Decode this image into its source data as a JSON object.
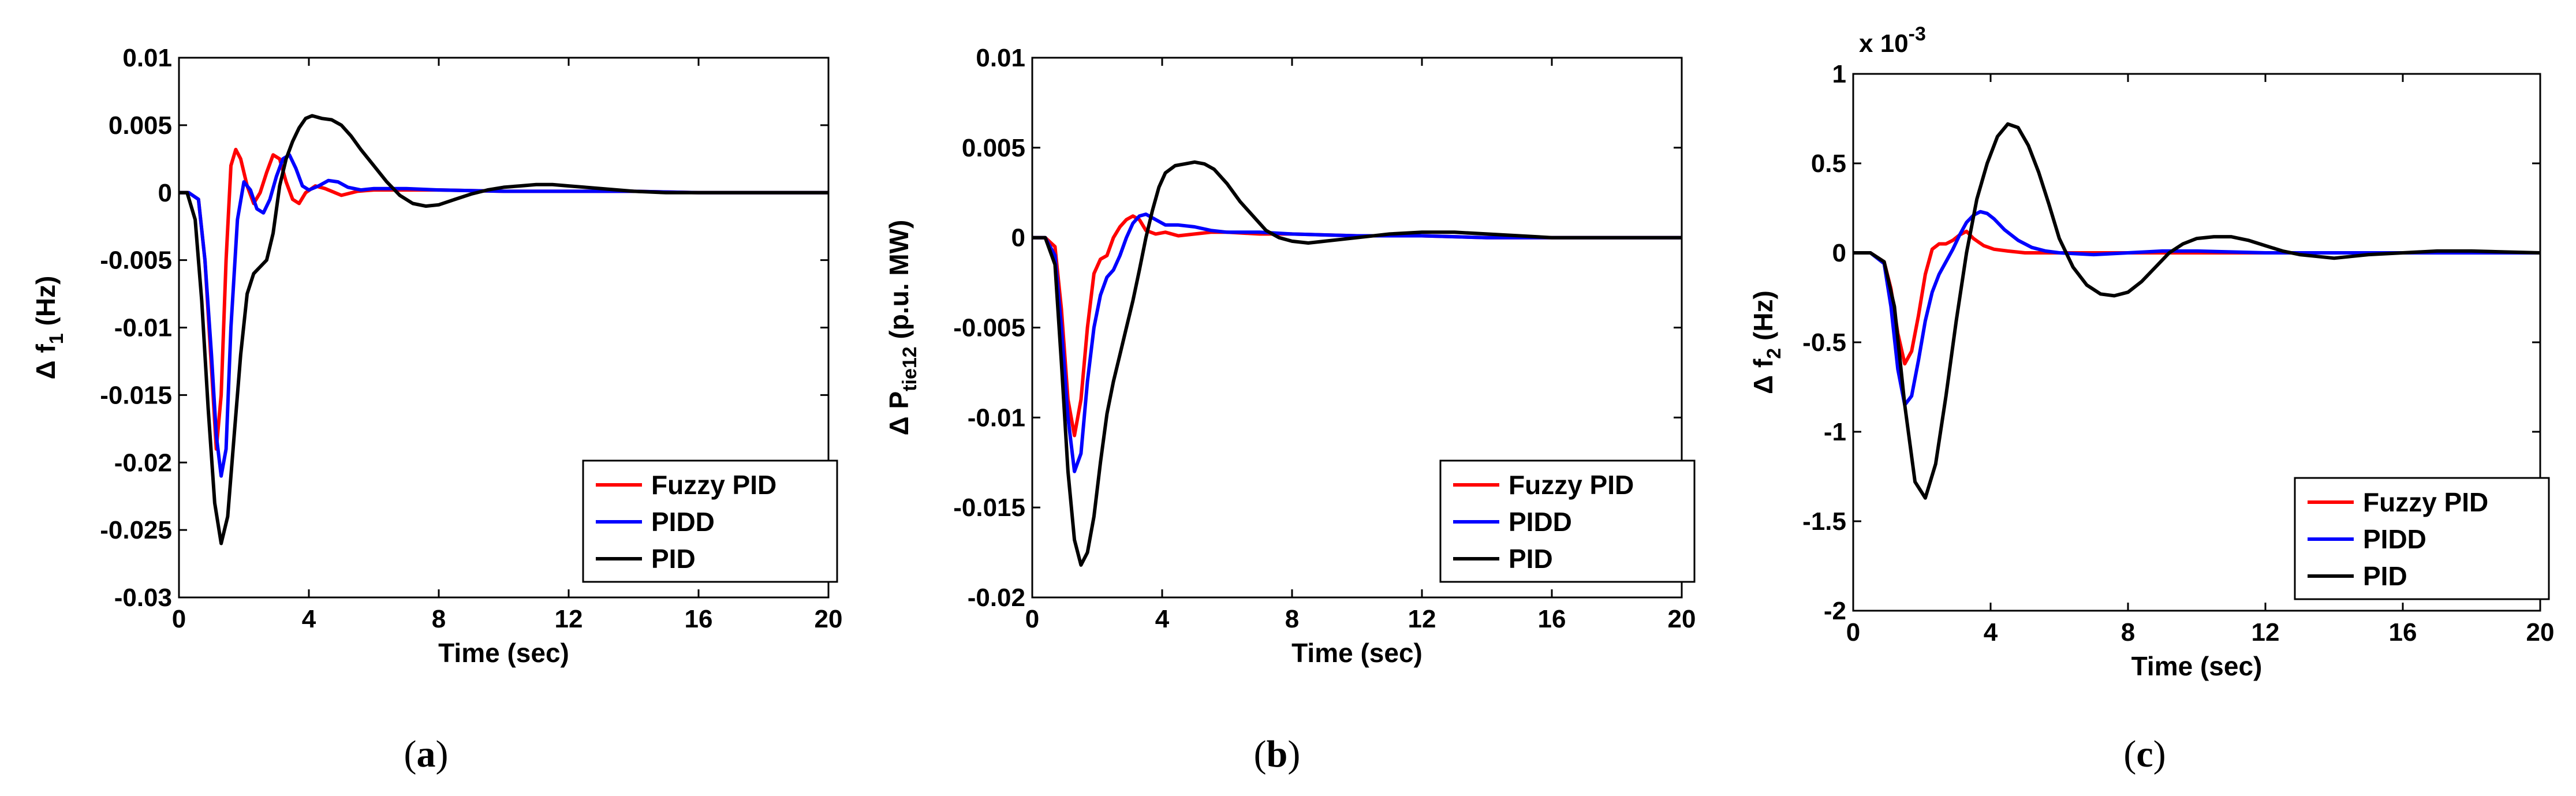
{
  "chart_data": [
    {
      "id": "a",
      "type": "line",
      "caption_letter": "a",
      "xlabel": "Time (sec)",
      "ylabel": {
        "prefix": "Δ f",
        "sub": "1",
        "suffix": " (Hz)"
      },
      "xlim": [
        0,
        20
      ],
      "ylim": [
        -0.03,
        0.01
      ],
      "xticks": [
        0,
        4,
        8,
        12,
        16,
        20
      ],
      "xtick_labels": [
        "0",
        "4",
        "8",
        "12",
        "16",
        "20"
      ],
      "yticks": [
        -0.03,
        -0.025,
        -0.02,
        -0.015,
        -0.01,
        -0.005,
        0,
        0.005,
        0.01
      ],
      "ytick_labels": [
        "-0.03",
        "-0.025",
        "-0.02",
        "-0.015",
        "-0.01",
        "-0.005",
        "0",
        "0.005",
        "0.01"
      ],
      "multiplier": null,
      "legend_position": "bottom-right",
      "series": [
        {
          "name": "Fuzzy PID",
          "color": "#ff0000",
          "x": [
            0,
            0.3,
            0.6,
            0.8,
            1.0,
            1.15,
            1.3,
            1.45,
            1.6,
            1.75,
            1.9,
            2.1,
            2.3,
            2.5,
            2.7,
            2.9,
            3.1,
            3.3,
            3.5,
            3.7,
            3.9,
            4.2,
            4.5,
            5.0,
            5.5,
            6,
            7,
            8,
            10,
            12,
            14,
            16,
            18,
            20
          ],
          "y": [
            0,
            0,
            -0.0005,
            -0.005,
            -0.013,
            -0.019,
            -0.015,
            -0.005,
            0.002,
            0.0032,
            0.0025,
            0.0005,
            -0.0008,
            0,
            0.0015,
            0.0028,
            0.0025,
            0.0008,
            -0.0005,
            -0.0008,
            0,
            0.0005,
            0.0003,
            -0.0002,
            0.0001,
            0.0002,
            0.0002,
            0.0002,
            0.0001,
            0.0001,
            0.0001,
            0,
            0,
            0
          ]
        },
        {
          "name": "PIDD",
          "color": "#0000ff",
          "x": [
            0,
            0.3,
            0.6,
            0.8,
            1.0,
            1.15,
            1.3,
            1.45,
            1.6,
            1.8,
            2.0,
            2.2,
            2.4,
            2.6,
            2.8,
            3.0,
            3.2,
            3.4,
            3.6,
            3.8,
            4.0,
            4.3,
            4.6,
            4.9,
            5.2,
            5.6,
            6,
            7,
            8,
            10,
            12,
            14,
            16,
            18,
            20
          ],
          "y": [
            0,
            0,
            -0.0005,
            -0.005,
            -0.012,
            -0.018,
            -0.021,
            -0.019,
            -0.01,
            -0.002,
            0.0008,
            0.0002,
            -0.0012,
            -0.0015,
            -0.0005,
            0.0012,
            0.0025,
            0.0028,
            0.0018,
            0.0005,
            0.0002,
            0.0005,
            0.0009,
            0.0008,
            0.0004,
            0.0002,
            0.0003,
            0.0003,
            0.0002,
            0.0001,
            0.0001,
            0.0001,
            0,
            0,
            0
          ]
        },
        {
          "name": "PID",
          "color": "#000000",
          "x": [
            0,
            0.25,
            0.5,
            0.7,
            0.9,
            1.1,
            1.3,
            1.5,
            1.7,
            1.9,
            2.1,
            2.3,
            2.5,
            2.7,
            2.9,
            3.1,
            3.3,
            3.5,
            3.7,
            3.9,
            4.1,
            4.4,
            4.7,
            5.0,
            5.3,
            5.6,
            6.0,
            6.4,
            6.8,
            7.2,
            7.6,
            8.0,
            8.5,
            9,
            9.5,
            10,
            10.5,
            11,
            11.5,
            12,
            12.5,
            13,
            14,
            15,
            16,
            17,
            18,
            19,
            20
          ],
          "y": [
            0,
            0,
            -0.002,
            -0.008,
            -0.016,
            -0.023,
            -0.026,
            -0.024,
            -0.018,
            -0.012,
            -0.0075,
            -0.006,
            -0.0055,
            -0.005,
            -0.003,
            0.0005,
            0.0025,
            0.0038,
            0.0048,
            0.0055,
            0.0057,
            0.0055,
            0.0054,
            0.005,
            0.0042,
            0.0032,
            0.002,
            0.0008,
            -0.0002,
            -0.0008,
            -0.001,
            -0.0009,
            -0.0005,
            -0.0001,
            0.0002,
            0.0004,
            0.0005,
            0.0006,
            0.0006,
            0.0005,
            0.0004,
            0.0003,
            0.0001,
            0,
            0,
            0,
            0,
            0,
            0
          ]
        }
      ]
    },
    {
      "id": "b",
      "type": "line",
      "caption_letter": "b",
      "xlabel": "Time (sec)",
      "ylabel": {
        "prefix": "Δ P",
        "sub": "tie12",
        "suffix": " (p.u. MW)"
      },
      "xlim": [
        0,
        20
      ],
      "ylim": [
        -0.02,
        0.01
      ],
      "xticks": [
        0,
        4,
        8,
        12,
        16,
        20
      ],
      "xtick_labels": [
        "0",
        "4",
        "8",
        "12",
        "16",
        "20"
      ],
      "yticks": [
        -0.02,
        -0.015,
        -0.01,
        -0.005,
        0,
        0.005,
        0.01
      ],
      "ytick_labels": [
        "-0.02",
        "-0.015",
        "-0.01",
        "-0.005",
        "0",
        "0.005",
        "0.01"
      ],
      "multiplier": null,
      "legend_position": "bottom-right",
      "series": [
        {
          "name": "Fuzzy PID",
          "color": "#ff0000",
          "x": [
            0,
            0.4,
            0.7,
            0.9,
            1.1,
            1.3,
            1.5,
            1.7,
            1.9,
            2.1,
            2.3,
            2.5,
            2.7,
            2.9,
            3.1,
            3.3,
            3.5,
            3.8,
            4.1,
            4.5,
            5,
            5.5,
            6,
            7,
            8,
            10,
            12,
            14,
            16,
            18,
            20
          ],
          "y": [
            0,
            0,
            -0.0005,
            -0.004,
            -0.009,
            -0.011,
            -0.009,
            -0.005,
            -0.002,
            -0.0012,
            -0.001,
            0,
            0.0006,
            0.001,
            0.0012,
            0.001,
            0.0004,
            0.0002,
            0.0003,
            0.0001,
            0.0002,
            0.0003,
            0.0003,
            0.0002,
            0.0002,
            0.0001,
            0.0001,
            0,
            0,
            0,
            0
          ]
        },
        {
          "name": "PIDD",
          "color": "#0000ff",
          "x": [
            0,
            0.4,
            0.7,
            0.9,
            1.1,
            1.3,
            1.5,
            1.7,
            1.9,
            2.1,
            2.3,
            2.5,
            2.7,
            2.9,
            3.1,
            3.3,
            3.5,
            3.8,
            4.1,
            4.5,
            5,
            5.5,
            6,
            7,
            8,
            10,
            12,
            14,
            16,
            18,
            20
          ],
          "y": [
            0,
            0,
            -0.001,
            -0.005,
            -0.01,
            -0.013,
            -0.012,
            -0.008,
            -0.005,
            -0.0032,
            -0.0022,
            -0.0018,
            -0.001,
            0,
            0.0008,
            0.0012,
            0.0013,
            0.001,
            0.0007,
            0.0007,
            0.0006,
            0.0004,
            0.0003,
            0.0003,
            0.0002,
            0.0001,
            0.0001,
            0,
            0,
            0,
            0
          ]
        },
        {
          "name": "PID",
          "color": "#000000",
          "x": [
            0,
            0.4,
            0.7,
            0.9,
            1.1,
            1.3,
            1.5,
            1.7,
            1.9,
            2.1,
            2.3,
            2.5,
            2.7,
            2.9,
            3.1,
            3.3,
            3.5,
            3.7,
            3.9,
            4.1,
            4.4,
            4.7,
            5.0,
            5.3,
            5.6,
            6.0,
            6.4,
            6.8,
            7.2,
            7.6,
            8.0,
            8.5,
            9,
            9.5,
            10,
            11,
            12,
            12.5,
            13,
            14,
            15,
            16,
            18,
            20
          ],
          "y": [
            0,
            0,
            -0.0015,
            -0.007,
            -0.013,
            -0.0168,
            -0.0182,
            -0.0175,
            -0.0155,
            -0.0125,
            -0.0098,
            -0.008,
            -0.0065,
            -0.005,
            -0.0035,
            -0.0018,
            0,
            0.0015,
            0.0028,
            0.0036,
            0.004,
            0.0041,
            0.0042,
            0.0041,
            0.0038,
            0.003,
            0.002,
            0.0012,
            0.0004,
            0,
            -0.0002,
            -0.0003,
            -0.0002,
            -0.0001,
            0,
            0.0002,
            0.0003,
            0.0003,
            0.0003,
            0.0002,
            0.0001,
            0,
            0,
            0
          ]
        }
      ]
    },
    {
      "id": "c",
      "type": "line",
      "caption_letter": "c",
      "xlabel": "Time (sec)",
      "ylabel": {
        "prefix": "Δ f",
        "sub": "2",
        "suffix": " (Hz)"
      },
      "xlim": [
        0,
        20
      ],
      "ylim": [
        -2,
        1
      ],
      "xticks": [
        0,
        4,
        8,
        12,
        16,
        20
      ],
      "xtick_labels": [
        "0",
        "4",
        "8",
        "12",
        "16",
        "20"
      ],
      "yticks": [
        -2,
        -1.5,
        -1,
        -0.5,
        0,
        0.5,
        1
      ],
      "ytick_labels": [
        "-2",
        "-1.5",
        "-1",
        "-0.5",
        "0",
        "0.5",
        "1"
      ],
      "multiplier": {
        "base": "x 10",
        "exponent": "-3"
      },
      "legend_position": "bottom-right",
      "series": [
        {
          "name": "Fuzzy PID",
          "color": "#ff0000",
          "x": [
            0,
            0.5,
            0.9,
            1.1,
            1.3,
            1.5,
            1.7,
            1.9,
            2.1,
            2.3,
            2.5,
            2.7,
            2.9,
            3.1,
            3.3,
            3.5,
            3.8,
            4.1,
            4.5,
            5,
            6,
            7,
            8,
            10,
            12,
            14,
            16,
            18,
            20
          ],
          "y": [
            0,
            0,
            -0.05,
            -0.2,
            -0.45,
            -0.62,
            -0.55,
            -0.35,
            -0.12,
            0.02,
            0.05,
            0.05,
            0.07,
            0.1,
            0.12,
            0.08,
            0.04,
            0.02,
            0.01,
            0,
            0,
            0,
            0,
            0,
            0,
            0,
            0,
            0,
            0
          ]
        },
        {
          "name": "PIDD",
          "color": "#0000ff",
          "x": [
            0,
            0.5,
            0.9,
            1.1,
            1.3,
            1.5,
            1.7,
            1.9,
            2.1,
            2.3,
            2.5,
            2.7,
            2.9,
            3.1,
            3.3,
            3.5,
            3.7,
            3.9,
            4.1,
            4.4,
            4.8,
            5.2,
            5.6,
            6,
            7,
            8,
            9,
            10,
            12,
            14,
            16,
            18,
            20
          ],
          "y": [
            0,
            0,
            -0.06,
            -0.3,
            -0.65,
            -0.85,
            -0.8,
            -0.6,
            -0.38,
            -0.22,
            -0.12,
            -0.05,
            0.02,
            0.1,
            0.17,
            0.21,
            0.23,
            0.22,
            0.19,
            0.13,
            0.07,
            0.03,
            0.01,
            0,
            -0.01,
            0,
            0.01,
            0.01,
            0,
            0,
            0,
            0,
            0
          ]
        },
        {
          "name": "PID",
          "color": "#000000",
          "x": [
            0,
            0.5,
            0.9,
            1.2,
            1.5,
            1.8,
            2.1,
            2.4,
            2.7,
            3.0,
            3.3,
            3.6,
            3.9,
            4.2,
            4.5,
            4.8,
            5.1,
            5.4,
            5.7,
            6.0,
            6.4,
            6.8,
            7.2,
            7.6,
            8.0,
            8.4,
            8.8,
            9.2,
            9.6,
            10.0,
            10.5,
            11.0,
            11.5,
            12.0,
            12.5,
            13.0,
            13.5,
            14,
            14.5,
            15,
            16,
            17,
            18,
            19,
            20
          ],
          "y": [
            0,
            0,
            -0.05,
            -0.3,
            -0.85,
            -1.28,
            -1.37,
            -1.18,
            -0.8,
            -0.38,
            0,
            0.3,
            0.5,
            0.65,
            0.72,
            0.7,
            0.6,
            0.45,
            0.27,
            0.08,
            -0.08,
            -0.18,
            -0.23,
            -0.24,
            -0.22,
            -0.16,
            -0.08,
            0,
            0.05,
            0.08,
            0.09,
            0.09,
            0.07,
            0.04,
            0.01,
            -0.01,
            -0.02,
            -0.03,
            -0.02,
            -0.01,
            0,
            0.01,
            0.01,
            0.005,
            0
          ]
        }
      ]
    }
  ]
}
